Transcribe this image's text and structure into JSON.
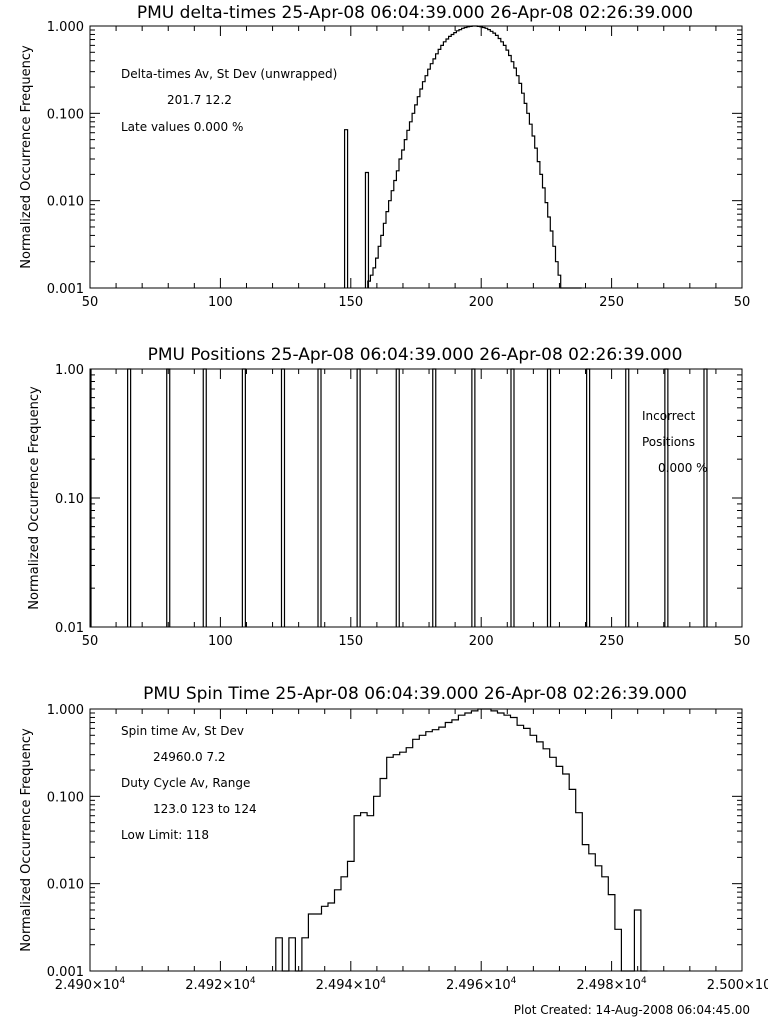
{
  "chart_data": [
    {
      "id": "delta",
      "type": "line",
      "title": "PMU delta-times 25-Apr-08 06:04:39.000 26-Apr-08 02:26:39.000",
      "ylabel": "Normalized Occurrence Frequency",
      "xlim": [
        50,
        250
      ],
      "ylim": [
        0.001,
        1.0
      ],
      "yscale": "log",
      "x_ticks": [
        "50",
        "100",
        "150",
        "200",
        "250",
        "50"
      ],
      "y_ticks": [
        "0.001",
        "0.010",
        "0.100",
        "1.000"
      ],
      "annotations": [
        "Delta-times Av, St Dev (unwrapped)",
        "201.7    12.2",
        "Late values    0.000 %"
      ],
      "spikes": [
        {
          "x": 148,
          "y": 0.065
        },
        {
          "x": 156,
          "y": 0.021
        }
      ],
      "series": [
        {
          "values_x": [
            157,
            158,
            159,
            160,
            161,
            162,
            163,
            164,
            165,
            166,
            167,
            168,
            169,
            170,
            171,
            172,
            173,
            174,
            175,
            176,
            177,
            178,
            179,
            180,
            181,
            182,
            183,
            184,
            185,
            186,
            187,
            188,
            189,
            190,
            191,
            192,
            193,
            194,
            195,
            196,
            197,
            198,
            199,
            200,
            201,
            202,
            203,
            204,
            205,
            206,
            207,
            208,
            209,
            210,
            211,
            212,
            213,
            214,
            215,
            216,
            217,
            218,
            219,
            220,
            221,
            222,
            223,
            224,
            225,
            226,
            227,
            228,
            229,
            230,
            231,
            232,
            233,
            234,
            235,
            236,
            237,
            238
          ],
          "values_y": [
            0.0012,
            0.0014,
            0.0017,
            0.0022,
            0.003,
            0.004,
            0.0055,
            0.0075,
            0.01,
            0.013,
            0.017,
            0.022,
            0.03,
            0.038,
            0.05,
            0.064,
            0.08,
            0.1,
            0.125,
            0.155,
            0.19,
            0.23,
            0.27,
            0.32,
            0.37,
            0.42,
            0.48,
            0.54,
            0.6,
            0.66,
            0.71,
            0.76,
            0.8,
            0.84,
            0.88,
            0.91,
            0.94,
            0.96,
            0.98,
            0.99,
            1.0,
            1.0,
            0.99,
            0.98,
            0.96,
            0.94,
            0.91,
            0.87,
            0.83,
            0.78,
            0.72,
            0.66,
            0.6,
            0.53,
            0.46,
            0.39,
            0.33,
            0.27,
            0.22,
            0.17,
            0.13,
            0.1,
            0.075,
            0.055,
            0.04,
            0.028,
            0.02,
            0.014,
            0.0095,
            0.0065,
            0.0045,
            0.003,
            0.002,
            0.0014,
            0.001,
            0.001,
            0.001,
            0.001,
            0.001,
            0.001,
            0.001,
            0.001
          ]
        }
      ]
    },
    {
      "id": "positions",
      "type": "bar",
      "title": "PMU Positions 25-Apr-08 06:04:39.000 26-Apr-08 02:26:39.000",
      "ylabel": "Normalized Occurrence Frequency",
      "xlim": [
        50,
        250
      ],
      "ylim": [
        0.01,
        1.0
      ],
      "yscale": "log",
      "x_ticks": [
        "50",
        "100",
        "150",
        "200",
        "250",
        "50"
      ],
      "y_ticks": [
        "0.01",
        "0.10",
        "1.00"
      ],
      "annotations": [
        "Incorrect",
        "Positions",
        "0.000 %"
      ],
      "positions": [
        65,
        80,
        94,
        109,
        124,
        138,
        153,
        168,
        182,
        197,
        212,
        226,
        241,
        256,
        271,
        286
      ]
    },
    {
      "id": "spin",
      "type": "line",
      "title": "PMU Spin Time 25-Apr-08 06:04:39.000 26-Apr-08 02:26:39.000",
      "ylabel": "Normalized Occurrence Frequency",
      "xlim": [
        24900,
        25000
      ],
      "ylim": [
        0.001,
        1.0
      ],
      "yscale": "log",
      "x_ticks": [
        "2.490×10",
        "2.492×10",
        "2.494×10",
        "2.496×10",
        "2.498×10",
        "2.500×10"
      ],
      "x_tick_exponent": "4",
      "y_ticks": [
        "0.001",
        "0.010",
        "0.100",
        "1.000"
      ],
      "annotations": [
        "Spin time Av, St Dev",
        "24960.0       7.2",
        "Duty Cycle Av, Range",
        "123.0  123 to 124",
        "Low Limit: 118"
      ],
      "series": [
        {
          "values_x": [
            24929,
            24930,
            24931,
            24932,
            24933,
            24934,
            24935,
            24936,
            24937,
            24938,
            24939,
            24940,
            24941,
            24942,
            24943,
            24944,
            24945,
            24946,
            24947,
            24948,
            24949,
            24950,
            24951,
            24952,
            24953,
            24954,
            24955,
            24956,
            24957,
            24958,
            24959,
            24960,
            24961,
            24962,
            24963,
            24964,
            24965,
            24966,
            24967,
            24968,
            24969,
            24970,
            24971,
            24972,
            24973,
            24974,
            24975,
            24976,
            24977,
            24978,
            24979,
            24980,
            24981,
            24982,
            24983,
            24984,
            24985,
            24986,
            24987,
            24988,
            24989,
            24990,
            24991
          ],
          "values_y": [
            0.0024,
            0.001,
            0.0024,
            0.001,
            0.0024,
            0.0045,
            0.0045,
            0.0055,
            0.006,
            0.0085,
            0.012,
            0.018,
            0.06,
            0.065,
            0.06,
            0.1,
            0.16,
            0.28,
            0.3,
            0.32,
            0.36,
            0.45,
            0.5,
            0.55,
            0.58,
            0.62,
            0.7,
            0.75,
            0.85,
            0.9,
            0.95,
            1.0,
            1.0,
            0.95,
            0.9,
            0.85,
            0.8,
            0.65,
            0.6,
            0.5,
            0.42,
            0.35,
            0.28,
            0.22,
            0.18,
            0.12,
            0.065,
            0.028,
            0.022,
            0.016,
            0.012,
            0.0075,
            0.003,
            0.001,
            0.001,
            0.005,
            0.001,
            0.0,
            0.0,
            0.0,
            0.0,
            0.0,
            0.0
          ]
        }
      ]
    }
  ],
  "footer": "Plot Created: 14-Aug-2008 06:04:45.00"
}
